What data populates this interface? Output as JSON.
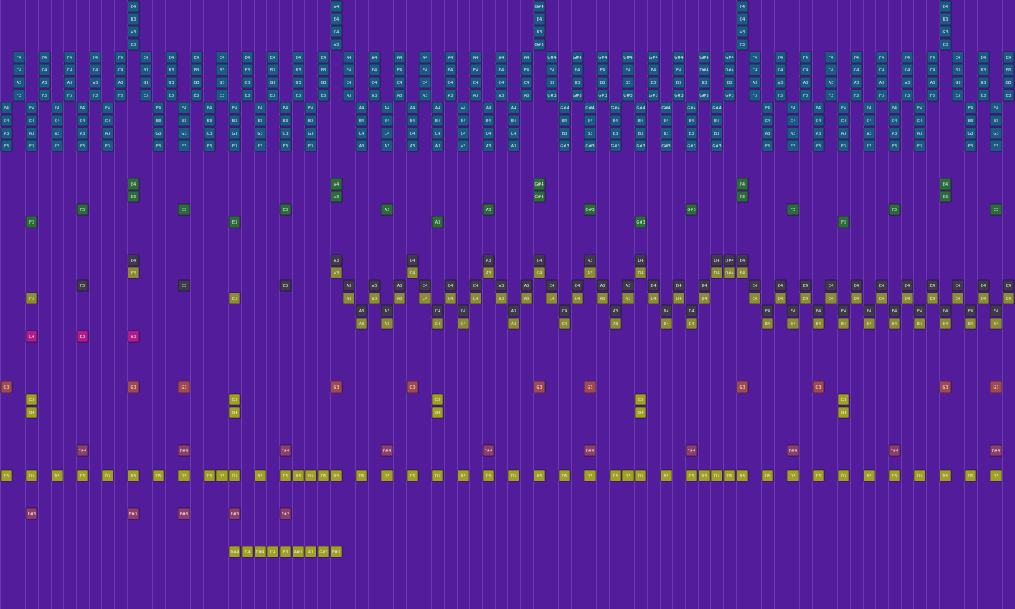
{
  "rows": [
    {
      "color": "#1c5a86",
      "notes": {
        "10": "E4",
        "26": "A4",
        "42": "G#4",
        "58": "F4",
        "74": "E4"
      }
    },
    {
      "color": "#1c5a86",
      "notes": {
        "10": "B3",
        "26": "E4",
        "42": "E4",
        "58": "C4",
        "74": "B3"
      }
    },
    {
      "color": "#1c5a86",
      "notes": {
        "10": "A3",
        "26": "C4",
        "42": "B3",
        "58": "A3",
        "74": "G3"
      }
    },
    {
      "color": "#1c5a86",
      "notes": {
        "10": "E3",
        "26": "A3",
        "42": "G#3",
        "58": "F3",
        "74": "E3"
      }
    },
    {
      "color": "#1c5a86",
      "notes": {
        "1": "F4",
        "3": "F4",
        "5": "F4",
        "7": "F4",
        "9": "F4",
        "11": "E4",
        "13": "E4",
        "15": "E4",
        "17": "E4",
        "19": "E4",
        "21": "E4",
        "23": "E4",
        "25": "E4",
        "27": "A4",
        "29": "A4",
        "31": "A4",
        "33": "A4",
        "35": "A4",
        "37": "A4",
        "39": "A4",
        "41": "A4",
        "43": "G#4",
        "45": "G#4",
        "47": "G#4",
        "49": "G#4",
        "51": "G#4",
        "53": "G#4",
        "55": "G#4",
        "57": "G#4",
        "59": "F4",
        "61": "F4",
        "63": "F4",
        "65": "F4",
        "67": "F4",
        "69": "F4",
        "71": "F4",
        "73": "F4",
        "75": "E4",
        "77": "E4",
        "79": "E4"
      }
    },
    {
      "color": "#1c5a86",
      "notes": {
        "1": "C4",
        "3": "C4",
        "5": "C4",
        "7": "C4",
        "9": "C4",
        "11": "B3",
        "13": "B3",
        "15": "B3",
        "17": "B3",
        "19": "B3",
        "21": "B3",
        "23": "B3",
        "25": "B3",
        "27": "E4",
        "29": "E4",
        "31": "E4",
        "33": "E4",
        "35": "E4",
        "37": "E4",
        "39": "E4",
        "41": "E4",
        "43": "E4",
        "45": "E4",
        "47": "E4",
        "49": "E4",
        "51": "E4",
        "53": "E4",
        "55": "D#4",
        "57": "D#4",
        "59": "C4",
        "61": "C4",
        "63": "C4",
        "65": "C4",
        "67": "C4",
        "69": "C4",
        "71": "C4",
        "73": "C4",
        "75": "B3",
        "77": "B3",
        "79": "B3"
      }
    },
    {
      "color": "#1c5a86",
      "notes": {
        "1": "A3",
        "3": "A3",
        "5": "A3",
        "7": "A3",
        "9": "A3",
        "11": "G3",
        "13": "G3",
        "15": "G3",
        "17": "G3",
        "19": "G3",
        "21": "G3",
        "23": "G3",
        "25": "G3",
        "27": "C4",
        "29": "C4",
        "31": "C4",
        "33": "C4",
        "35": "C4",
        "37": "C4",
        "39": "C4",
        "41": "C4",
        "43": "B3",
        "45": "B3",
        "47": "B3",
        "49": "B3",
        "51": "B3",
        "53": "B3",
        "55": "B3",
        "57": "B3",
        "59": "A3",
        "61": "A3",
        "63": "A3",
        "65": "A3",
        "67": "A3",
        "69": "A3",
        "71": "A3",
        "73": "A3",
        "75": "G3",
        "77": "G3",
        "79": "G3"
      }
    },
    {
      "color": "#1c5a86",
      "notes": {
        "1": "F3",
        "3": "F3",
        "5": "F3",
        "7": "F3",
        "9": "F3",
        "11": "E3",
        "13": "E3",
        "15": "E3",
        "17": "E3",
        "19": "E3",
        "21": "E3",
        "23": "E3",
        "25": "E3",
        "27": "A3",
        "29": "A3",
        "31": "A3",
        "33": "A3",
        "35": "A3",
        "37": "A3",
        "39": "A3",
        "41": "A3",
        "43": "G#3",
        "45": "G#3",
        "47": "G#3",
        "49": "G#3",
        "51": "G#3",
        "53": "G#3",
        "55": "G#3",
        "57": "G#3",
        "59": "F3",
        "61": "F3",
        "63": "F3",
        "65": "F3",
        "67": "F3",
        "69": "F3",
        "71": "F3",
        "73": "F3",
        "75": "E3",
        "77": "E3",
        "79": "E3"
      }
    },
    {
      "color": "#1c5a86",
      "notes": {
        "0": "F4",
        "2": "F4",
        "4": "F4",
        "6": "F4",
        "8": "F4",
        "12": "E4",
        "14": "E4",
        "16": "E4",
        "18": "E4",
        "20": "E4",
        "22": "E4",
        "24": "E4",
        "28": "A4",
        "30": "A4",
        "32": "A4",
        "34": "A4",
        "36": "A4",
        "38": "A4",
        "40": "A4",
        "44": "G#4",
        "46": "G#4",
        "48": "G#4",
        "50": "G#4",
        "52": "G#4",
        "54": "G#4",
        "56": "G#4",
        "60": "F4",
        "62": "F4",
        "64": "F4",
        "66": "F4",
        "68": "F4",
        "70": "F4",
        "72": "F4",
        "76": "E4",
        "78": "E4"
      }
    },
    {
      "color": "#1c5a86",
      "notes": {
        "0": "C4",
        "2": "C4",
        "4": "C4",
        "6": "C4",
        "8": "C4",
        "12": "B3",
        "14": "B3",
        "16": "B3",
        "18": "B3",
        "20": "B3",
        "22": "B3",
        "24": "B3",
        "28": "E4",
        "30": "E4",
        "32": "E4",
        "34": "E4",
        "36": "E4",
        "38": "E4",
        "40": "E4",
        "44": "E4",
        "46": "E4",
        "48": "E4",
        "50": "E4",
        "52": "E4",
        "54": "E4",
        "56": "E4",
        "60": "C4",
        "62": "C4",
        "64": "C4",
        "66": "C4",
        "68": "C4",
        "70": "C4",
        "72": "C4",
        "76": "B3",
        "78": "B3"
      }
    },
    {
      "color": "#1c5a86",
      "notes": {
        "0": "A3",
        "2": "A3",
        "4": "A3",
        "6": "A3",
        "8": "A3",
        "12": "G3",
        "14": "G3",
        "16": "G3",
        "18": "G3",
        "20": "G3",
        "22": "G3",
        "24": "G3",
        "28": "C4",
        "30": "C4",
        "32": "C4",
        "34": "C4",
        "36": "C4",
        "38": "C4",
        "40": "C4",
        "44": "B3",
        "46": "B3",
        "48": "B3",
        "50": "B3",
        "52": "B3",
        "54": "B3",
        "56": "B3",
        "60": "A3",
        "62": "A3",
        "64": "A3",
        "66": "A3",
        "68": "A3",
        "70": "A3",
        "72": "A3",
        "76": "G3",
        "78": "G3"
      }
    },
    {
      "color": "#1c5a86",
      "notes": {
        "0": "F3",
        "2": "F3",
        "4": "F3",
        "6": "F3",
        "8": "F3",
        "12": "E3",
        "14": "E3",
        "16": "E3",
        "18": "E3",
        "20": "E3",
        "22": "E3",
        "24": "E3",
        "28": "A3",
        "30": "A3",
        "32": "A3",
        "34": "A3",
        "36": "A3",
        "38": "A3",
        "40": "A3",
        "44": "G#3",
        "46": "G#3",
        "48": "G#3",
        "50": "G#3",
        "52": "G#3",
        "54": "G#3",
        "56": "G#3",
        "60": "F3",
        "62": "F3",
        "64": "F3",
        "66": "F3",
        "68": "F3",
        "70": "F3",
        "72": "F3",
        "76": "E3",
        "78": "E3"
      }
    },
    null,
    null,
    {
      "color": "#2d6a3c",
      "notes": {
        "10": "E4",
        "26": "A4",
        "42": "G#4",
        "58": "F4",
        "74": "E4"
      }
    },
    {
      "color": "#2d6a3c",
      "notes": {
        "10": "E3",
        "26": "A3",
        "42": "G#3",
        "58": "F3",
        "74": "E3"
      }
    },
    {
      "color": "#2d6a3c",
      "notes": {
        "6": "F3",
        "14": "E3",
        "22": "E3",
        "30": "A3",
        "38": "A3",
        "46": "G#3",
        "54": "G#3",
        "62": "F3",
        "70": "F3",
        "78": "E3"
      }
    },
    {
      "color": "#2d6a3c",
      "notes": {
        "2": "F3",
        "18": "E3",
        "34": "A3",
        "50": "G#3",
        "66": "F3"
      }
    },
    null,
    null,
    {
      "color": "#3e3a4c",
      "notes": {
        "10": "E4",
        "26": "A3",
        "32": "C4",
        "38": "A3",
        "42": "C4",
        "46": "A3",
        "50": "D4",
        "56": "D4",
        "57": "D#4",
        "58": "E4"
      }
    },
    {
      "color": "#8c8c34",
      "notes": {
        "10": "E3",
        "26": "A3",
        "32": "C4",
        "38": "A3",
        "42": "C4",
        "46": "A3",
        "50": "D4",
        "56": "D4",
        "57": "D#4",
        "58": "E4"
      }
    },
    {
      "color": "#3e3a4c",
      "notes": {
        "6": "F3",
        "14": "E3",
        "22": "E3",
        "27": "A3",
        "29": "A3",
        "31": "A3",
        "33": "C4",
        "35": "C4",
        "37": "C4",
        "39": "A3",
        "41": "A3",
        "43": "C4",
        "45": "C4",
        "47": "A3",
        "49": "A3",
        "51": "D4",
        "53": "D4",
        "55": "D4",
        "59": "E4",
        "61": "E4",
        "63": "E4",
        "65": "E4",
        "67": "E4",
        "69": "E4",
        "71": "E4",
        "73": "E4",
        "75": "E4",
        "77": "E4",
        "79": "E4"
      }
    },
    {
      "color": "#8c8c34",
      "notes": {
        "2": "F3",
        "18": "E3",
        "27": "A3",
        "29": "A3",
        "31": "A3",
        "33": "C4",
        "35": "C4",
        "37": "C4",
        "39": "A3",
        "41": "A3",
        "43": "C4",
        "45": "C4",
        "47": "A3",
        "49": "A3",
        "51": "D4",
        "53": "D4",
        "55": "D4",
        "59": "E4",
        "61": "E4",
        "63": "E4",
        "65": "E4",
        "67": "E4",
        "69": "E4",
        "71": "E4",
        "73": "E4",
        "75": "E4",
        "77": "E4",
        "79": "E4"
      }
    },
    {
      "color": "#3e3a4c",
      "notes": {
        "28": "A3",
        "30": "A3",
        "34": "C4",
        "36": "C4",
        "40": "A3",
        "44": "C4",
        "48": "A3",
        "52": "D4",
        "54": "D4",
        "60": "E4",
        "62": "E4",
        "64": "E4",
        "66": "E4",
        "68": "E4",
        "70": "E4",
        "72": "E4",
        "74": "E4",
        "76": "E4",
        "78": "E4"
      }
    },
    {
      "color": "#8c8c34",
      "notes": {
        "28": "A3",
        "30": "A3",
        "34": "C4",
        "36": "C4",
        "40": "A3",
        "44": "C4",
        "48": "A3",
        "52": "D4",
        "54": "D4",
        "60": "E4",
        "62": "E4",
        "64": "E4",
        "66": "E4",
        "68": "E4",
        "70": "E4",
        "72": "E4",
        "74": "E4",
        "76": "E4",
        "78": "E4"
      }
    },
    {
      "color": "#b01c8c",
      "notes": {
        "2": "C4",
        "6": "B3",
        "10": "A3"
      }
    },
    null,
    null,
    null,
    {
      "color": "#a04a50",
      "notes": {
        "0": "G3",
        "10": "G3",
        "14": "G3",
        "26": "G3",
        "32": "G3",
        "42": "G3",
        "46": "G3",
        "58": "G3",
        "64": "G3",
        "74": "G3",
        "78": "G3"
      }
    },
    {
      "color": "#a0a024",
      "notes": {
        "2": "G3",
        "18": "G3",
        "34": "G3",
        "50": "G3",
        "66": "G3"
      }
    },
    {
      "color": "#a0a024",
      "notes": {
        "2": "G4",
        "18": "G4",
        "34": "G4",
        "50": "G4",
        "66": "G4"
      }
    },
    null,
    null,
    {
      "color": "#8c3e6c",
      "notes": {
        "6": "F#4",
        "14": "F#4",
        "22": "F#4",
        "30": "F#4",
        "38": "F#4",
        "46": "F#4",
        "54": "F#4",
        "62": "F#4",
        "70": "F#4",
        "78": "F#4"
      }
    },
    null,
    {
      "color": "#a0a024",
      "notes": {
        "0": "D5",
        "2": "D5",
        "4": "D5",
        "6": "D5",
        "8": "D5",
        "10": "D5",
        "12": "D5",
        "14": "D5",
        "16": "D5",
        "17": "D5",
        "18": "D5",
        "20": "D5",
        "22": "D5",
        "23": "D5",
        "24": "D5",
        "25": "D5",
        "26": "D5",
        "28": "D5",
        "30": "D5",
        "32": "D5",
        "34": "D5",
        "36": "D5",
        "38": "D5",
        "40": "D5",
        "42": "D5",
        "44": "D5",
        "46": "D5",
        "48": "D5",
        "49": "D5",
        "50": "D5",
        "52": "D5",
        "54": "D5",
        "55": "D5",
        "56": "D5",
        "57": "D5",
        "58": "D5",
        "60": "D5",
        "62": "D5",
        "64": "D5",
        "66": "D5",
        "68": "D5",
        "70": "D5",
        "72": "D5",
        "74": "D5",
        "76": "D5",
        "78": "D5"
      }
    },
    null,
    null,
    {
      "color": "#8c3e6c",
      "notes": {
        "2": "F#3",
        "10": "F#3",
        "14": "F#3",
        "18": "F#3",
        "22": "F#3"
      }
    },
    null,
    null,
    {
      "color": "#a0a024",
      "notes": {
        "18": "D#4",
        "19": "D4",
        "20": "C#4",
        "21": "C4",
        "22": "B3",
        "23": "A#3",
        "24": "A3",
        "25": "G#3",
        "26": "F#3"
      }
    },
    null,
    null,
    null,
    null
  ]
}
